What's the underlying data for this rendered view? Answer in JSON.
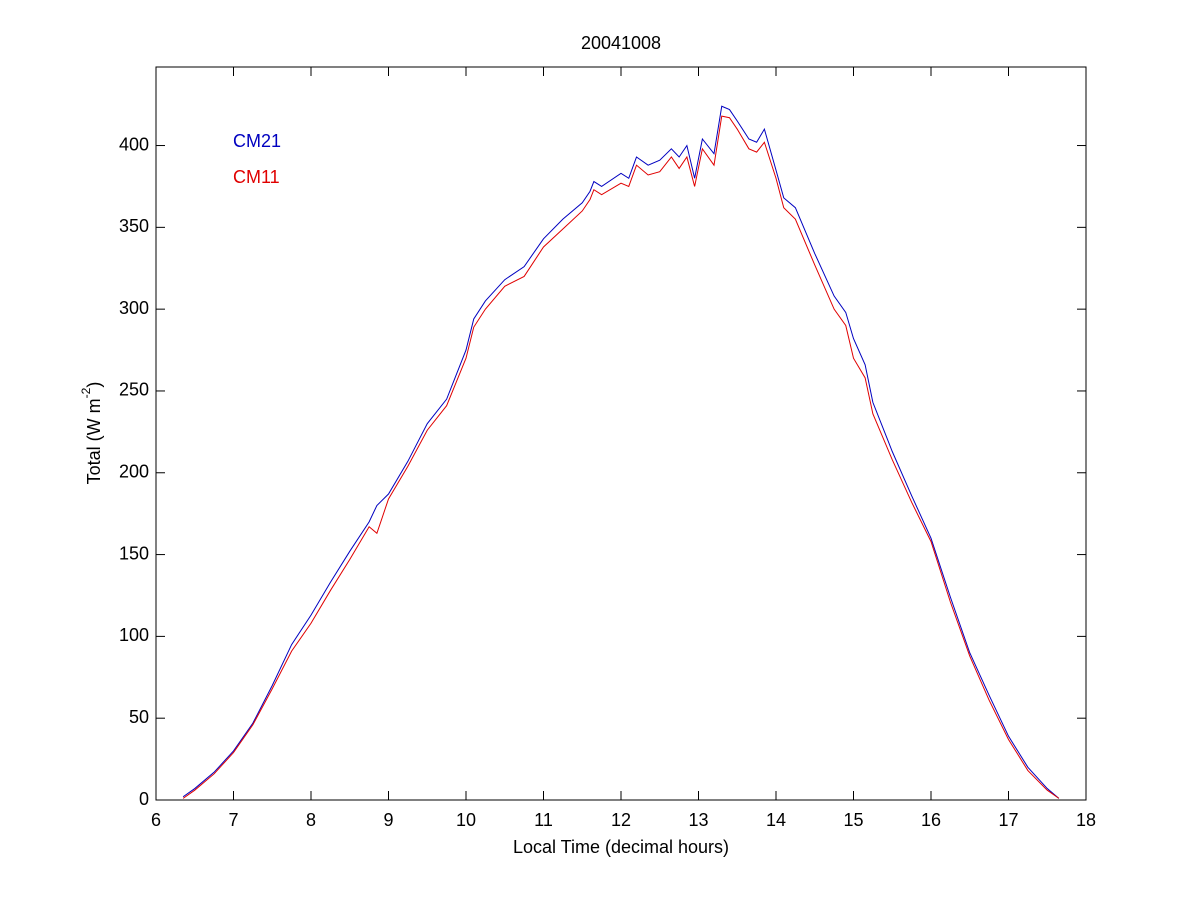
{
  "chart_data": {
    "type": "line",
    "title": "20041008",
    "xlabel": "Local Time (decimal hours)",
    "ylabel": [
      "Total (W m",
      "-2",
      ")"
    ],
    "x": [
      6.35,
      6.5,
      6.75,
      7.0,
      7.25,
      7.5,
      7.75,
      8.0,
      8.25,
      8.5,
      8.75,
      8.85,
      9.0,
      9.25,
      9.5,
      9.75,
      10.0,
      10.1,
      10.25,
      10.5,
      10.75,
      11.0,
      11.25,
      11.5,
      11.6,
      11.65,
      11.75,
      12.0,
      12.1,
      12.2,
      12.35,
      12.5,
      12.65,
      12.75,
      12.85,
      12.95,
      13.05,
      13.2,
      13.3,
      13.4,
      13.5,
      13.65,
      13.75,
      13.85,
      14.0,
      14.1,
      14.25,
      14.5,
      14.75,
      14.9,
      15.0,
      15.15,
      15.25,
      15.5,
      15.75,
      16.0,
      16.25,
      16.5,
      16.75,
      17.0,
      17.25,
      17.5,
      17.65
    ],
    "series": [
      {
        "name": "CM21",
        "color": "#0000c0",
        "values": [
          2,
          7,
          17,
          30,
          47,
          70,
          95,
          113,
          133,
          152,
          170,
          180,
          187,
          207,
          230,
          245,
          275,
          294,
          305,
          318,
          326,
          343,
          355,
          365,
          372,
          378,
          375,
          383,
          380,
          393,
          388,
          391,
          398,
          393,
          400,
          380,
          404,
          395,
          424,
          422,
          415,
          404,
          402,
          410,
          385,
          368,
          362,
          334,
          308,
          298,
          282,
          266,
          243,
          213,
          186,
          160,
          124,
          90,
          64,
          39,
          20,
          7,
          1
        ]
      },
      {
        "name": "CM11",
        "color": "#e00000",
        "values": [
          1,
          6,
          16,
          29,
          46,
          68,
          91,
          108,
          128,
          147,
          167,
          163,
          184,
          204,
          226,
          241,
          270,
          289,
          300,
          314,
          320,
          338,
          349,
          360,
          367,
          373,
          370,
          377,
          375,
          388,
          382,
          384,
          393,
          386,
          393,
          375,
          398,
          388,
          418,
          417,
          410,
          398,
          396,
          402,
          380,
          362,
          355,
          327,
          300,
          290,
          270,
          258,
          236,
          208,
          182,
          158,
          121,
          88,
          61,
          37,
          18,
          6,
          1
        ]
      }
    ],
    "xlim": [
      6,
      18
    ],
    "xticks": [
      6,
      7,
      8,
      9,
      10,
      11,
      12,
      13,
      14,
      15,
      16,
      17,
      18
    ],
    "ylim": [
      0,
      448
    ],
    "yticks": [
      0,
      50,
      100,
      150,
      200,
      250,
      300,
      350,
      400
    ],
    "legend": "upper left"
  }
}
